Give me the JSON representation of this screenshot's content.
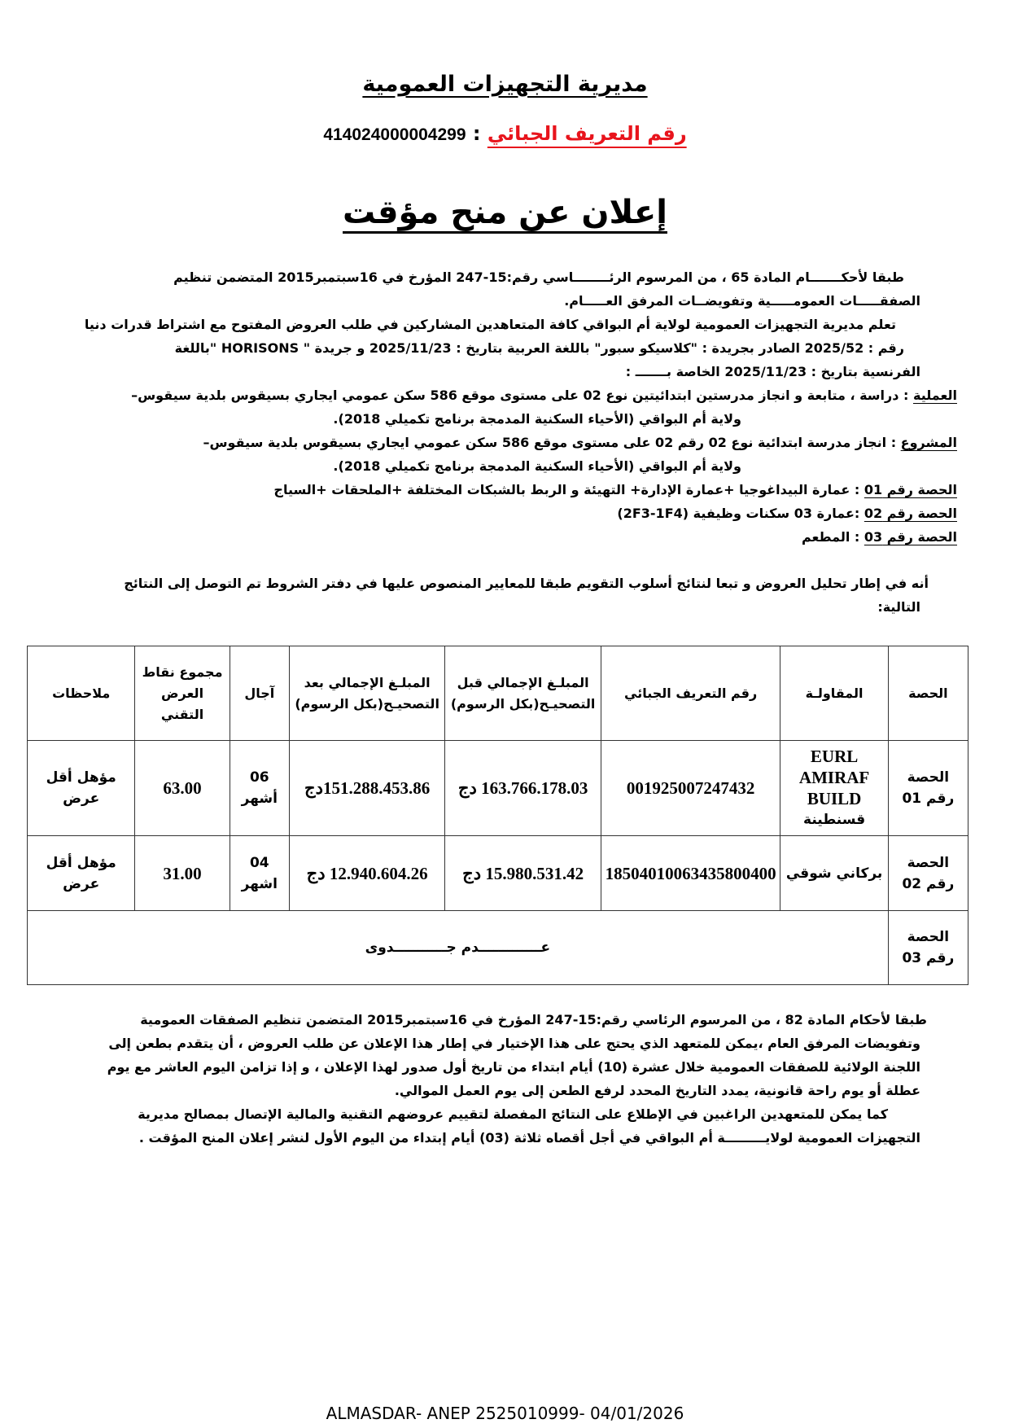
{
  "header": {
    "directorate": "مديرية التجهيزات العمومية",
    "tax_id_label": "رقم التعريف الجبائي",
    "tax_id_sep": " : ",
    "tax_id_value": "414024000004299",
    "title": "إعلان عن منح مؤقت"
  },
  "intro": {
    "lines": [
      "طبقا لأحكـــــــام المادة 65 ، من المرسوم الرئــــــــاسي رقم:15-247 المؤرخ في 16سبتمبر2015 المتضمن تنظيم",
      "الصفقـــــات العمومـــــية وتفويضــات المرفق العـــــام.",
      "تعلم مديرية  التجهيزات العمومية لولاية أم البواقي كافة المتعاهدين المشاركين في طلب العروض المفتوح مع اشتراط قدرات دنيا",
      "رقم : 2025/52 الصادر بجريدة : \"كلاسيكو سبور\" باللغة العربية بتاريخ : 2025/11/23 و جريدة \" HORISONS \"باللغة",
      "الفرنسية  بتاريخ : 2025/11/23 الخاصة بـــــــ :"
    ]
  },
  "operation": {
    "label": "العملية",
    "line1": " : دراسة ، متابعة و انجاز مدرستين ابتدائيتين نوع 02 على مستوى موقع 586 سكن عمومي ايجاري بسيقوس بلدية سيقوس–",
    "line2": "ولاية أم البواقي (الأحياء السكنية المدمجة برنامج تكميلي 2018)."
  },
  "project": {
    "label": "المشروع",
    "line1": " : انجاز مدرسة ابتدائية نوع 02  رقم 02 على مستوى موقع 586 سكن عمومي ايجاري بسيقوس بلدية سيقوس–",
    "line2": "ولاية أم البواقي (الأحياء السكنية المدمجة برنامج تكميلي 2018)."
  },
  "lots": [
    {
      "label": "الحصة رقم 01",
      "text": " : عمارة البيداغوجيا +عمارة الإدارة+ التهيئة و الربط بالشبكات المختلفة +الملحقات +السياج"
    },
    {
      "label": "الحصة رقم 02",
      "text": " :عمارة 03 سكنات وظيفية (2F3-1F4)"
    },
    {
      "label": "الحصة رقم 03",
      "text": " : المطعم"
    }
  ],
  "results_intro": {
    "line1": "أنه في إطار تحليل العروض و تبعا لنتائج أسلوب التقويم طبقا للمعايير  المنصوص عليها في دفتر الشروط تم التوصل إلى النتائج",
    "line2": "التالية:"
  },
  "table": {
    "headers": [
      "الحصة",
      "المقاولـة",
      "رقم التعريف الجبائي",
      "المبلـغ الإجمالي قبل التصحيـح(بكل الرسوم)",
      "المبلـغ الإجمالي بعد التصحيـح(بكل الرسوم)",
      "آجال",
      "مجموع نقاط العرض التقني",
      "ملاحظات"
    ],
    "rows": [
      {
        "lot": "الحصة رقم 01",
        "company_latin": "EURL AMIRAF BUILD",
        "company_city": "قسنطينة",
        "tax_id": "001925007247432",
        "before": "163.766.178.03 دج",
        "after": "151.288.453.86دج",
        "delay": "06 أشهر",
        "score": "63.00",
        "notes": "مؤهل أقل عرض"
      },
      {
        "lot": "الحصة رقم 02",
        "company_latin": "",
        "company_city": "بركاني شوقي",
        "tax_id": "18504010063435800400",
        "before": "15.980.531.42 دج",
        "after": "12.940.604.26 دج",
        "delay": "04 اشهر",
        "score": "31.00",
        "notes": "مؤهل أقل عرض"
      }
    ],
    "lot3": {
      "lot": "الحصة رقم 03",
      "status": "عـــــــــــــدم جـــــــــــدوى"
    }
  },
  "appeal": {
    "lines": [
      "طبقا لأحكام المادة 82 ، من المرسوم الرئاسي رقم:15-247 المؤرخ في 16سبتمبر2015 المتضمن تنظيم الصفقات العمومية",
      "وتفويضات المرفق العام ،يمكن للمتعهد الذي يحتج على هذا الإختيار في إطار هذا الإعلان عن طلب العروض ، أن يتقدم بطعن إلى",
      "اللجنة  الولائية للصفقات العمومية خلال عشرة (10) أيام ابتداء من تاريخ أول صدور لهذا الإعلان ،  و إذا تزامن اليوم العاشر مع يوم",
      "عطلة  أو يوم راحة قانونية، يمدد التاريخ المحدد لرفع الطعن إلى يوم العمل الموالي.",
      "كما يمكن للمتعهدين الراغبين في الإطلاع على النتائج المفصلة لتقييم عروضهم التقنية والمالية الإتصال بمصالح مديرية",
      "التجهيزات العمومية لولايـــــــــة أم البواقي في أجل أقصاه ثلاثة (03) أيام إبتداء من اليوم الأول لنشر إعلان المنح المؤقت ."
    ]
  },
  "footer": "ALMASDAR- ANEP 2525010999- 04/01/2026",
  "colors": {
    "tax_label": "#e8141c",
    "text": "#000000"
  }
}
